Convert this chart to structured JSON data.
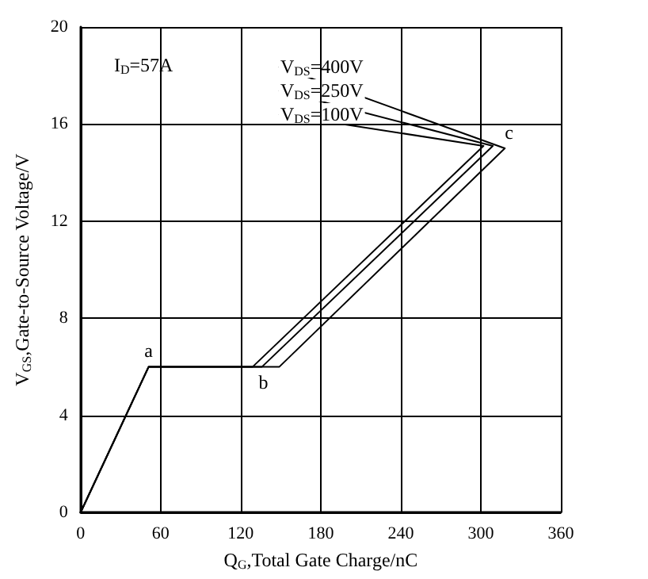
{
  "chart_data": {
    "type": "line",
    "xlabel": "Q$_{G}$,Total Gate Charge/nC",
    "ylabel": "V$_{GS}$,Gate-to-Source Voltage/V",
    "annotations": [
      "I$_{D}$=57A",
      {
        "text": "a",
        "x": 51,
        "y": 6
      },
      {
        "text": "b",
        "x": 137,
        "y": 6
      },
      {
        "text": "c",
        "x": 318,
        "y": 15
      }
    ],
    "series": [
      {
        "name": "V$_{DS}$=400V",
        "color": "#000000",
        "x": [
          0,
          51,
          149,
          318
        ],
        "values": [
          0,
          6,
          6,
          15
        ]
      },
      {
        "name": "V$_{DS}$=250V",
        "color": "#000000",
        "x": [
          0,
          51,
          136,
          309
        ],
        "values": [
          0,
          6,
          6,
          15.1
        ]
      },
      {
        "name": "V$_{DS}$=100V",
        "color": "#000000",
        "x": [
          0,
          51,
          129,
          302
        ],
        "values": [
          0,
          6,
          6,
          15.1
        ]
      }
    ],
    "xlim": [
      0,
      360
    ],
    "xticks": [
      0,
      60,
      120,
      180,
      240,
      300,
      360
    ],
    "ylim": [
      0,
      20
    ],
    "yticks": [
      0,
      4,
      8,
      12,
      16,
      20
    ],
    "grid": true,
    "legend": false,
    "marker": "none",
    "line_style": "solid"
  }
}
